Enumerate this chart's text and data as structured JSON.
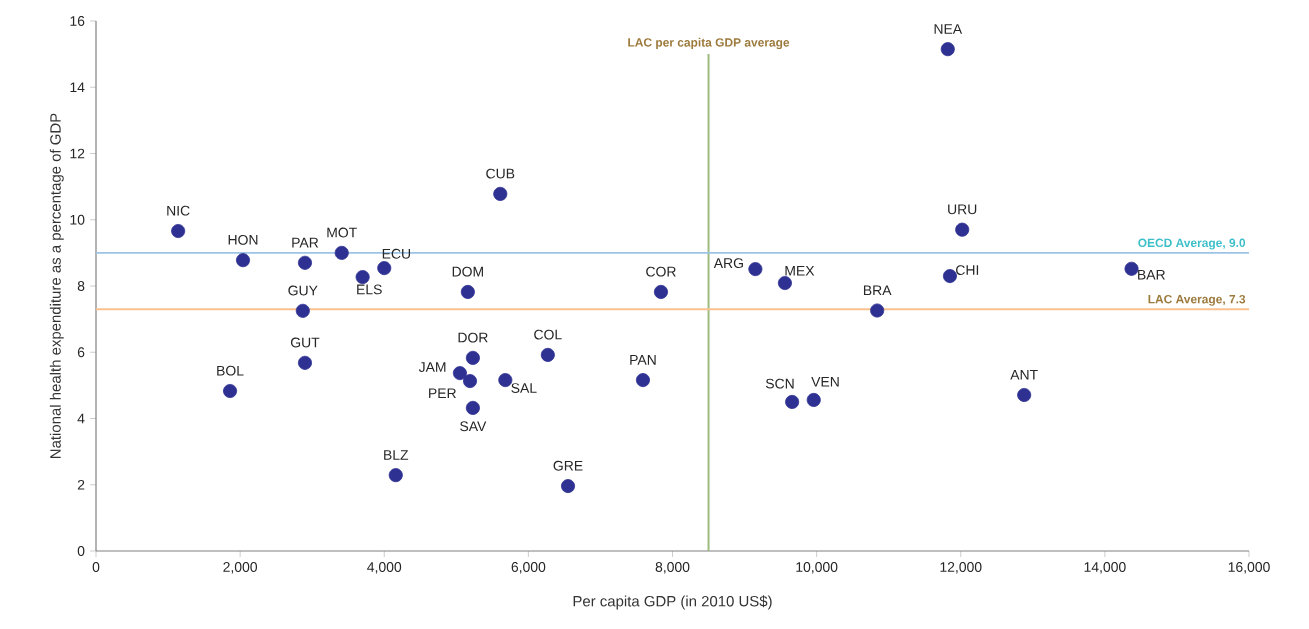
{
  "chart_data": {
    "type": "scatter",
    "xlabel": "Per capita GDP (in 2010 US$)",
    "ylabel": "National health expenditure as a percentage of GDP",
    "xlim": [
      0,
      16000
    ],
    "ylim": [
      0,
      16
    ],
    "xticks": [
      0,
      {
        "value": 2000,
        "label": "2,000"
      },
      {
        "value": 4000,
        "label": "4,000"
      },
      {
        "value": 6000,
        "label": "6,000"
      },
      {
        "value": 8000,
        "label": "8,000"
      },
      {
        "value": 10000,
        "label": "10,000"
      },
      {
        "value": 12000,
        "label": "12,000"
      },
      {
        "value": 14000,
        "label": "14,000"
      },
      {
        "value": 16000,
        "label": "16,000"
      }
    ],
    "yticks": [
      0,
      2,
      4,
      6,
      8,
      10,
      12,
      14,
      16
    ],
    "marker": "circle",
    "series": [
      {
        "color": "#2e3192",
        "x": [
          1140,
          2040,
          2900,
          3410,
          4000,
          3700,
          5160,
          5610,
          2870,
          2900,
          1860,
          5230,
          5050,
          5190,
          5230,
          5680,
          4160,
          6270,
          6550,
          7590,
          7840,
          9150,
          9560,
          10840,
          9660,
          9960,
          11820,
          12020,
          11850,
          14370,
          12880
        ],
        "values": [
          9.66,
          8.78,
          8.7,
          9.0,
          8.54,
          8.27,
          7.82,
          10.78,
          7.25,
          5.68,
          4.83,
          5.83,
          5.37,
          5.13,
          4.32,
          5.16,
          2.29,
          5.92,
          1.96,
          5.16,
          7.82,
          8.51,
          8.09,
          7.26,
          4.5,
          4.56,
          15.15,
          9.7,
          8.3,
          8.52,
          4.71
        ],
        "value_labels": [
          "NIC",
          "HON",
          "PAR",
          "MOT",
          "ECU",
          "ELS",
          "DOM",
          "CUB",
          "GUY",
          "GUT",
          "BOL",
          "DOR",
          "JAM",
          "PER",
          "SAV",
          "SAL",
          "BLZ",
          "COL",
          "GRE",
          "PAN",
          "COR",
          "ARG",
          "MEX",
          "BRA",
          "SCN",
          "VEN",
          "NEA",
          "URU",
          "CHI",
          "BAR",
          "ANT"
        ]
      }
    ],
    "ref_lines": [
      {
        "axis": "x",
        "value": 8500,
        "label": "LAC per capita GDP average",
        "color": "#9bbb7f"
      },
      {
        "axis": "y",
        "value": 9.0,
        "label": "OECD Average, 9.0",
        "color": "#9dc3e6"
      },
      {
        "axis": "y",
        "value": 7.3,
        "label": "LAC Average, 7.3",
        "color": "#fac090"
      }
    ]
  }
}
